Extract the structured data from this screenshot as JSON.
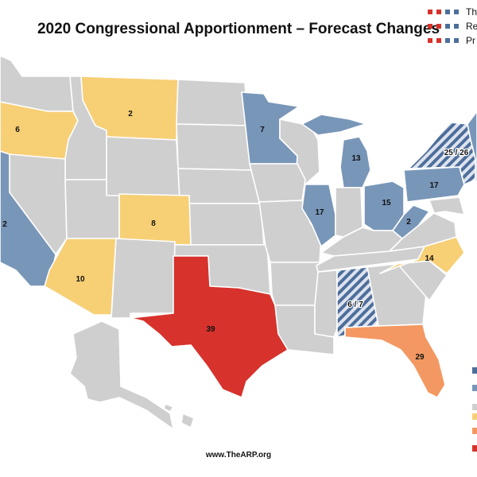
{
  "title": "2020 Congressional Apportionment – Forecast Changes",
  "footer": "www.TheARP.org",
  "colors": {
    "background_state": "#cfcfcf",
    "blue": "#7896b8",
    "yellow": "#f7cf75",
    "orange": "#f39862",
    "red": "#d7322c",
    "hatch_light": "#dde3ee",
    "hatch_dark": "#4d6e9b",
    "state_border": "#ffffff"
  },
  "legend": {
    "top": [
      {
        "marker_color": "#d7322c",
        "marker_color2": "#4d6e9b",
        "text": "Th"
      },
      {
        "marker_color": "#d7322c",
        "marker_color2": "#4d6e9b",
        "text": "Re"
      },
      {
        "marker_color": "#d7322c",
        "marker_color2": "#4d6e9b",
        "text": "Pr"
      }
    ],
    "side_swatches": [
      "#4d6e9b",
      "#7896b8",
      "#cfcfcf",
      "#f7cf75",
      "#f39862",
      "#d7322c"
    ]
  },
  "state_labels": {
    "oregon": "6",
    "montana": "2",
    "minnesota": "7",
    "california": "2",
    "colorado": "8",
    "arizona": "10",
    "texas": "39",
    "michigan": "13",
    "illinois": "17",
    "ohio": "15",
    "pennsylvania": "17",
    "new_york": "25 / 26",
    "west_virginia": "2",
    "north_carolina": "14",
    "alabama": "6 / 7",
    "florida": "29"
  }
}
